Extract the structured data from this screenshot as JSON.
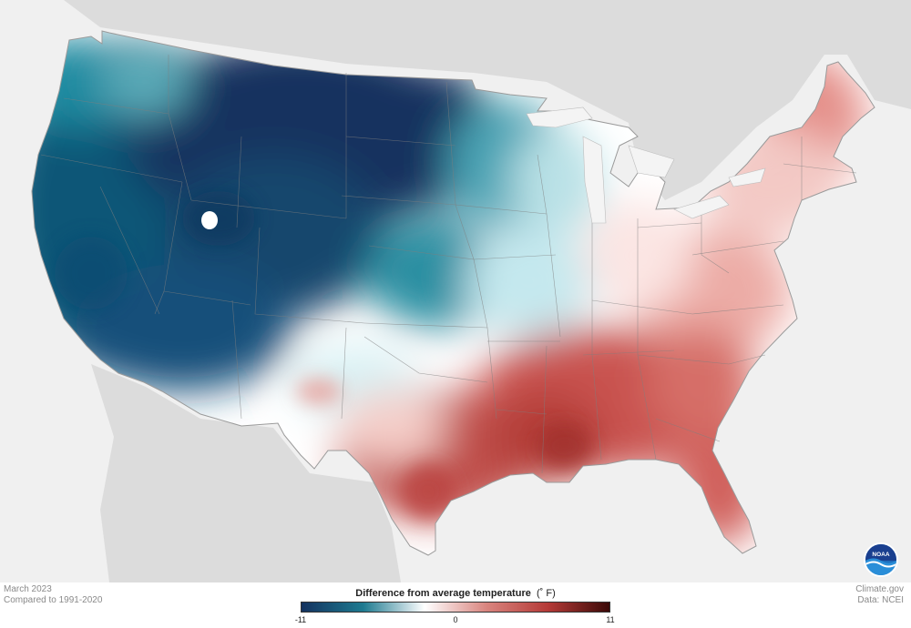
{
  "map": {
    "region": "Contiguous United States",
    "variable": "Difference from average temperature",
    "colors": {
      "ocean_land_background": "#f0f0f0",
      "neighbor_land": "#dcdcdc",
      "state_borders": "#8c8c8c",
      "strong_cold": "#14325f",
      "cold": "#1e7a90",
      "near_zero": "#ffffff",
      "warm": "#e8a09b",
      "strong_warm": "#b53a37"
    },
    "anomaly_regions": [
      {
        "area": "Northern Plains / Northern Rockies",
        "level": "strong_cold"
      },
      {
        "area": "West Coast / Great Basin",
        "level": "cold"
      },
      {
        "area": "Upper Midwest",
        "level": "cold"
      },
      {
        "area": "Central Plains / Ozarks",
        "level": "near_zero"
      },
      {
        "area": "Ohio Valley / Mid-Atlantic",
        "level": "warm"
      },
      {
        "area": "Northeast / New England",
        "level": "warm"
      },
      {
        "area": "Gulf Coast / Southeast",
        "level": "strong_warm"
      },
      {
        "area": "Florida",
        "level": "strong_warm"
      }
    ]
  },
  "footer": {
    "date": "March 2023",
    "baseline": "Compared to 1991-2020",
    "source_site": "Climate.gov",
    "source_data": "Data: NCEI"
  },
  "legend": {
    "title": "Difference from average temperature",
    "unit": "(˚ F)",
    "ticks": [
      {
        "label": "-11",
        "value": -11
      },
      {
        "label": "0",
        "value": 0
      },
      {
        "label": "11",
        "value": 11
      }
    ],
    "min": -11,
    "max": 11,
    "gradient": [
      "#14325f",
      "#1e7a90",
      "#ffffff",
      "#d9857f",
      "#b53a37",
      "#3b0a08"
    ]
  },
  "logo": {
    "text": "NOAA",
    "icon": "noaa-logo-icon"
  }
}
